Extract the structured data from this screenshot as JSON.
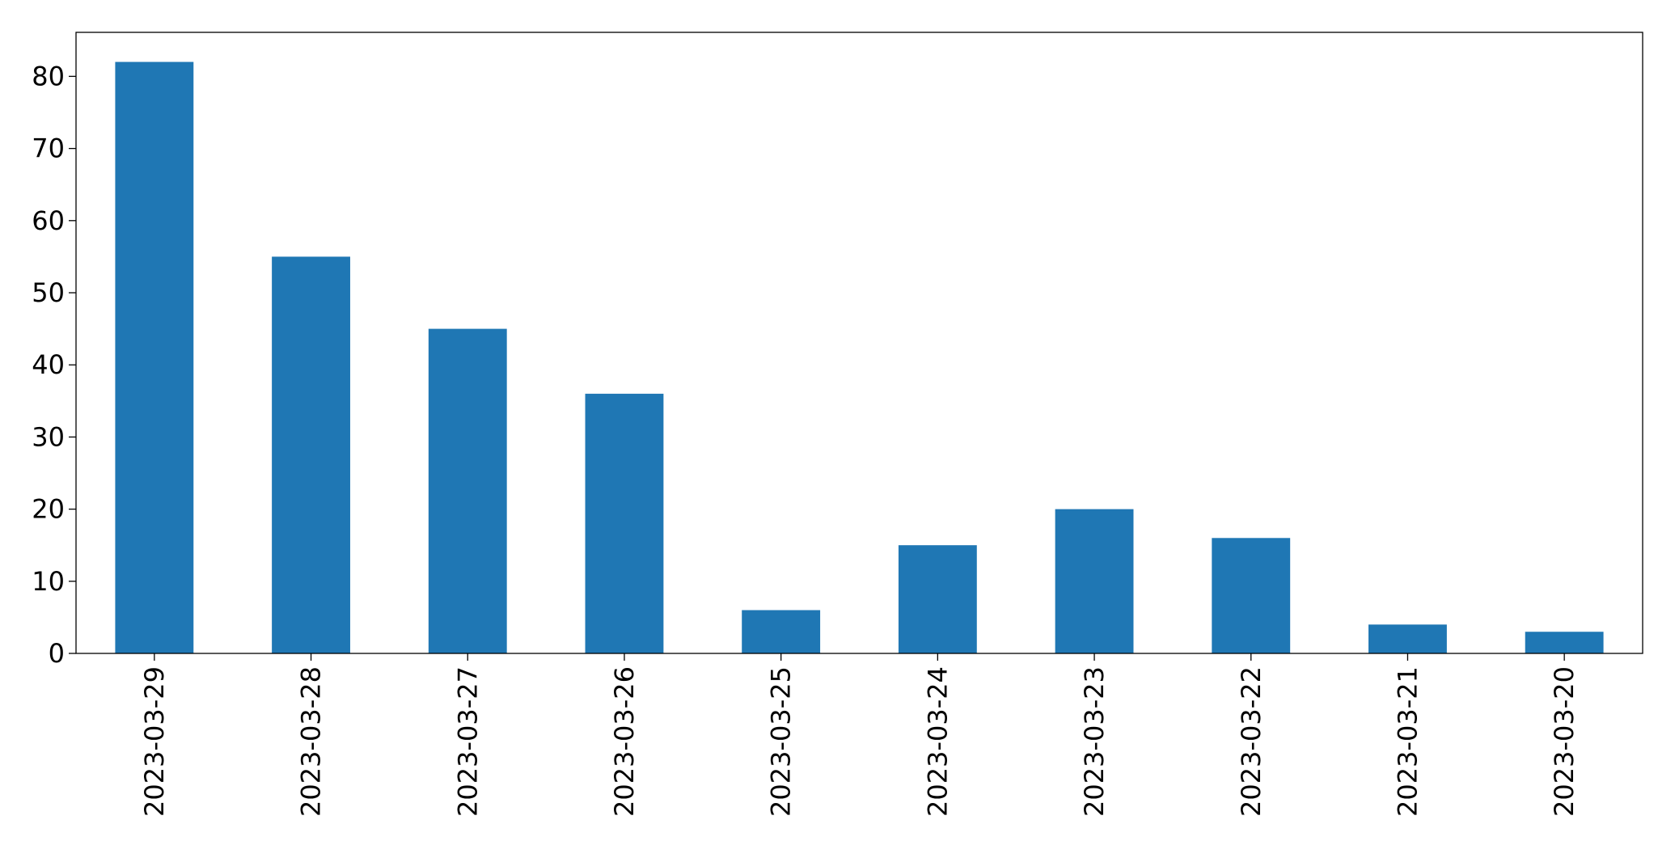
{
  "chart_data": {
    "type": "bar",
    "categories": [
      "2023-03-29",
      "2023-03-28",
      "2023-03-27",
      "2023-03-26",
      "2023-03-25",
      "2023-03-24",
      "2023-03-23",
      "2023-03-22",
      "2023-03-21",
      "2023-03-20"
    ],
    "values": [
      82,
      55,
      45,
      36,
      6,
      15,
      20,
      16,
      4,
      3
    ],
    "color": "#1f77b4",
    "ylim": [
      0,
      86.1
    ],
    "yticks": [
      0,
      10,
      20,
      30,
      40,
      50,
      60,
      70,
      80
    ],
    "grid": false
  }
}
